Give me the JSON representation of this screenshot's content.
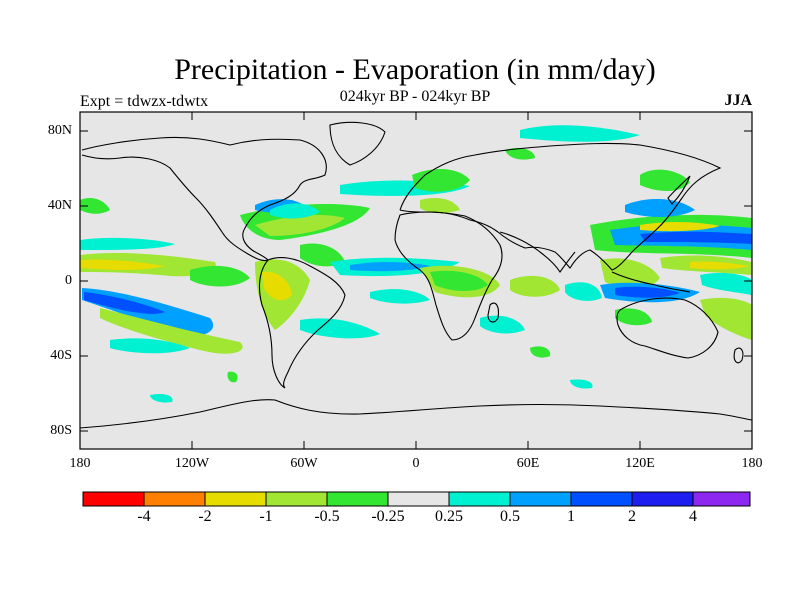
{
  "header": {
    "title": "Precipitation - Evaporation (in mm/day)",
    "subtitle": "024kyr BP - 024kyr BP",
    "experiment": "Expt = tdwzx-tdwtx",
    "season": "JJA"
  },
  "axes": {
    "lat_labels": [
      "80N",
      "40N",
      "0",
      "40S",
      "80S"
    ],
    "lon_labels": [
      "180",
      "120W",
      "60W",
      "0",
      "60E",
      "120E",
      "180"
    ]
  },
  "colorbar": {
    "colors": [
      "#ff0000",
      "#ff8000",
      "#e6dc00",
      "#a0e632",
      "#32e632",
      "#e6e6e6",
      "#00f0d2",
      "#00a0ff",
      "#0050ff",
      "#1e1ef0",
      "#8c28f0"
    ],
    "labels": [
      "-4",
      "-2",
      "-1",
      "-0.5",
      "-0.25",
      "0.25",
      "0.5",
      "1",
      "2",
      "4"
    ]
  },
  "map": {
    "background_color": "#e6e6e6"
  }
}
